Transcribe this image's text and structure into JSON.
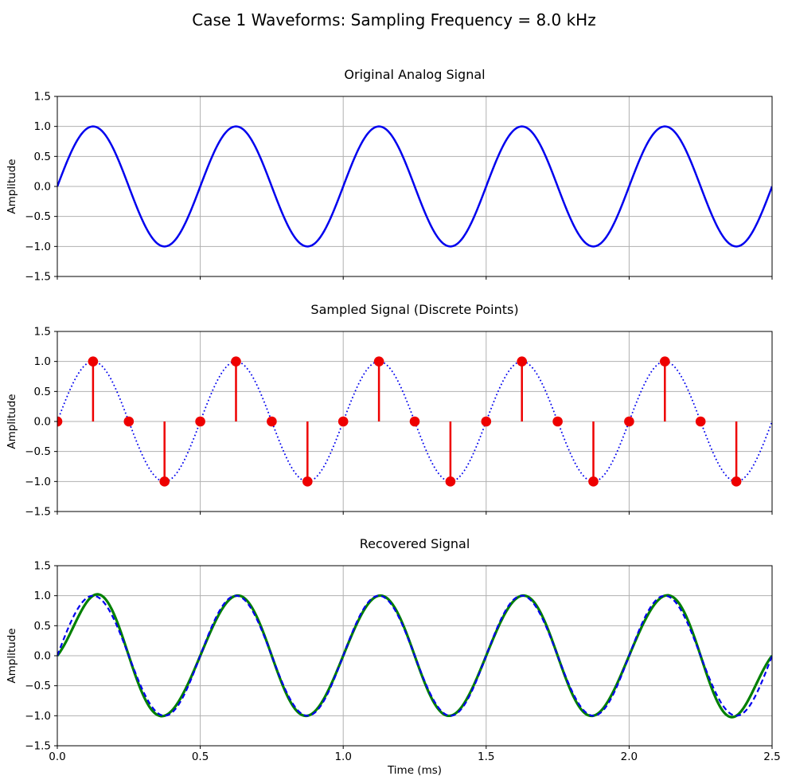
{
  "figure": {
    "title": "Case 1 Waveforms: Sampling Frequency = 8.0 kHz",
    "xlabel": "Time (ms)",
    "sampling_frequency_khz": 8.0,
    "background": "#ffffff",
    "text_color": "#000000",
    "grid_color": "#b0b0b0",
    "spine_color": "#000000"
  },
  "sampling": {
    "period_ms": 0.125,
    "t_ms": [
      0.0,
      0.125,
      0.25,
      0.375,
      0.5,
      0.625,
      0.75,
      0.875,
      1.0,
      1.125,
      1.25,
      1.375,
      1.5,
      1.625,
      1.75,
      1.875,
      2.0,
      2.125,
      2.25,
      2.375
    ],
    "values": [
      0,
      1,
      0,
      -1,
      0,
      1,
      0,
      -1,
      0,
      1,
      0,
      -1,
      0,
      1,
      0,
      -1,
      0,
      1,
      0,
      -1
    ]
  },
  "chart_data": [
    {
      "type": "line",
      "title": "Original Analog Signal",
      "ylabel": "Amplitude",
      "xlabel": "",
      "xlim": [
        0.0,
        2.5
      ],
      "ylim": [
        -1.5,
        1.5
      ],
      "xticks": [
        0.0,
        0.5,
        1.0,
        1.5,
        2.0,
        2.5
      ],
      "yticks": [
        -1.5,
        -1.0,
        -0.5,
        0.0,
        0.5,
        1.0,
        1.5
      ],
      "show_xticklabels": false,
      "grid": true,
      "series": [
        {
          "name": "original-analog-sine",
          "kind": "sine",
          "frequency_khz": 2.0,
          "amplitude": 1.0,
          "color": "#0000ee",
          "style": "solid",
          "width": 2.5
        }
      ]
    },
    {
      "type": "stem",
      "title": "Sampled Signal (Discrete Points)",
      "ylabel": "Amplitude",
      "xlabel": "",
      "xlim": [
        0.0,
        2.5
      ],
      "ylim": [
        -1.5,
        1.5
      ],
      "xticks": [
        0.0,
        0.5,
        1.0,
        1.5,
        2.0,
        2.5
      ],
      "yticks": [
        -1.5,
        -1.0,
        -0.5,
        0.0,
        0.5,
        1.0,
        1.5
      ],
      "show_xticklabels": false,
      "grid": true,
      "series": [
        {
          "name": "analog-reference-dotted",
          "kind": "sine",
          "frequency_khz": 2.0,
          "amplitude": 1.0,
          "color": "#0000ee",
          "style": "dotted",
          "width": 1.8
        },
        {
          "name": "sample-stems",
          "kind": "stem",
          "samples_ref": "sampling",
          "color": "#ee0000",
          "stem_width": 2.5,
          "marker": "circle",
          "marker_radius": 6.3
        }
      ]
    },
    {
      "type": "line",
      "title": "Recovered Signal",
      "ylabel": "Amplitude",
      "xlabel": "Time (ms)",
      "xlim": [
        0.0,
        2.5
      ],
      "ylim": [
        -1.5,
        1.5
      ],
      "xticks": [
        0.0,
        0.5,
        1.0,
        1.5,
        2.0,
        2.5
      ],
      "yticks": [
        -1.5,
        -1.0,
        -0.5,
        0.0,
        0.5,
        1.0,
        1.5
      ],
      "show_xticklabels": true,
      "grid": true,
      "series": [
        {
          "name": "recovered-sinc-reconstruction",
          "kind": "sinc_reconstruction",
          "samples_ref": "sampling",
          "color": "#008000",
          "style": "solid",
          "width": 3.2
        },
        {
          "name": "original-reference-dashed",
          "kind": "sine",
          "frequency_khz": 2.0,
          "amplitude": 1.0,
          "color": "#0000ee",
          "style": "dashed",
          "width": 2.2
        }
      ]
    }
  ]
}
